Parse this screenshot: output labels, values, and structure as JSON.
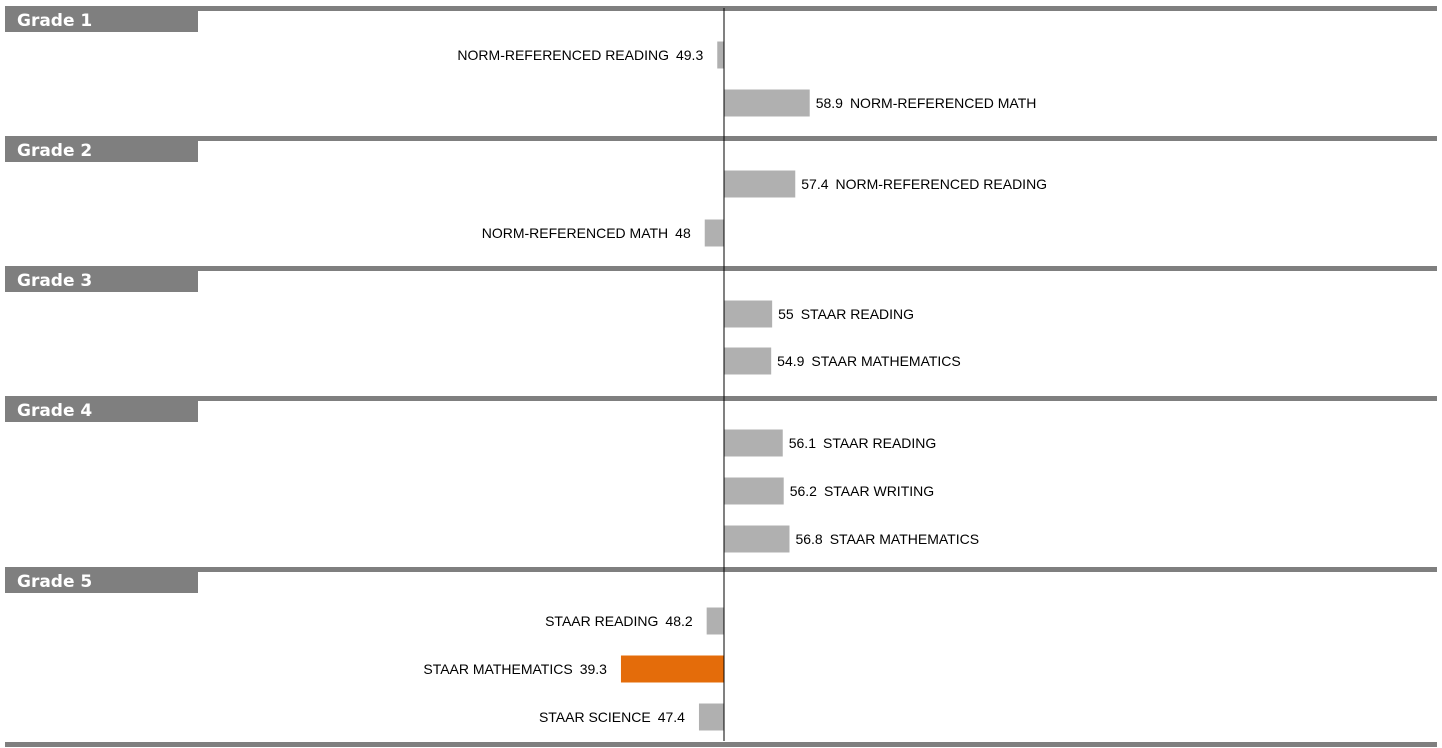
{
  "chart_data": {
    "type": "bar",
    "orientation": "horizontal",
    "baseline": 50,
    "grid": false,
    "colors": {
      "bar": "#b0b0b0",
      "highlight": "#e46c0a",
      "header": "#7f7f7f",
      "axis": "#000000",
      "label_text": "#ffffff"
    },
    "groups": [
      {
        "label": "Grade 1",
        "items": [
          {
            "name": "NORM-REFERENCED READING",
            "value": 49.3,
            "value_text": "49.3",
            "highlight": false
          },
          {
            "name": "NORM-REFERENCED MATH",
            "value": 58.9,
            "value_text": "58.9",
            "highlight": false
          }
        ]
      },
      {
        "label": "Grade 2",
        "items": [
          {
            "name": "NORM-REFERENCED READING",
            "value": 57.4,
            "value_text": "57.4",
            "highlight": false
          },
          {
            "name": "NORM-REFERENCED MATH",
            "value": 48,
            "value_text": "48",
            "highlight": false
          }
        ]
      },
      {
        "label": "Grade 3",
        "items": [
          {
            "name": "STAAR READING",
            "value": 55,
            "value_text": "55",
            "highlight": false
          },
          {
            "name": "STAAR MATHEMATICS",
            "value": 54.9,
            "value_text": "54.9",
            "highlight": false
          }
        ]
      },
      {
        "label": "Grade 4",
        "items": [
          {
            "name": "STAAR READING",
            "value": 56.1,
            "value_text": "56.1",
            "highlight": false
          },
          {
            "name": "STAAR WRITING",
            "value": 56.2,
            "value_text": "56.2",
            "highlight": false
          },
          {
            "name": "STAAR MATHEMATICS",
            "value": 56.8,
            "value_text": "56.8",
            "highlight": false
          }
        ]
      },
      {
        "label": "Grade 5",
        "items": [
          {
            "name": "STAAR READING",
            "value": 48.2,
            "value_text": "48.2",
            "highlight": false
          },
          {
            "name": "STAAR MATHEMATICS",
            "value": 39.3,
            "value_text": "39.3",
            "highlight": true
          },
          {
            "name": "STAAR SCIENCE",
            "value": 47.4,
            "value_text": "47.4",
            "highlight": false
          }
        ]
      }
    ]
  }
}
